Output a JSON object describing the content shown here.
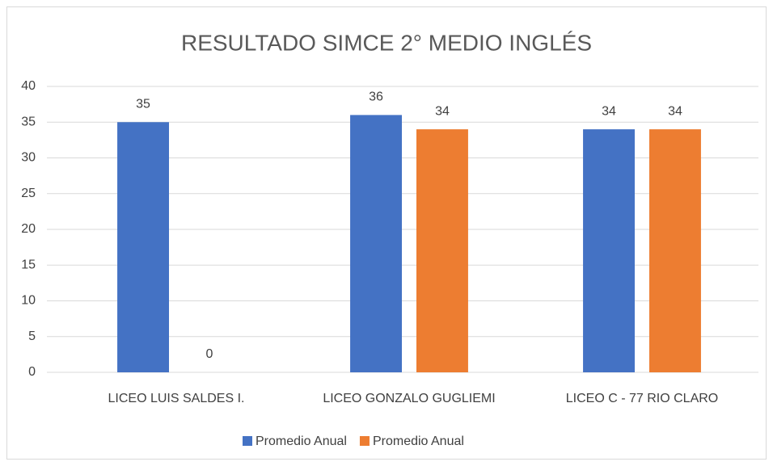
{
  "chart_data": {
    "type": "bar",
    "title": "RESULTADO SIMCE 2° MEDIO INGLÉS",
    "categories": [
      "LICEO LUIS SALDES I.",
      "LICEO GONZALO GUGLIEMI",
      "LICEO C - 77 RIO CLARO"
    ],
    "series": [
      {
        "name": "Promedio Anual",
        "color": "#4472c4",
        "values": [
          35,
          36,
          34
        ]
      },
      {
        "name": "Promedio Anual",
        "color": "#ed7d31",
        "values": [
          0,
          34,
          34
        ]
      }
    ],
    "ylim": [
      0,
      40
    ],
    "yticks": [
      0,
      5,
      10,
      15,
      20,
      25,
      30,
      35,
      40
    ],
    "grid": true,
    "legend": "bottom"
  }
}
